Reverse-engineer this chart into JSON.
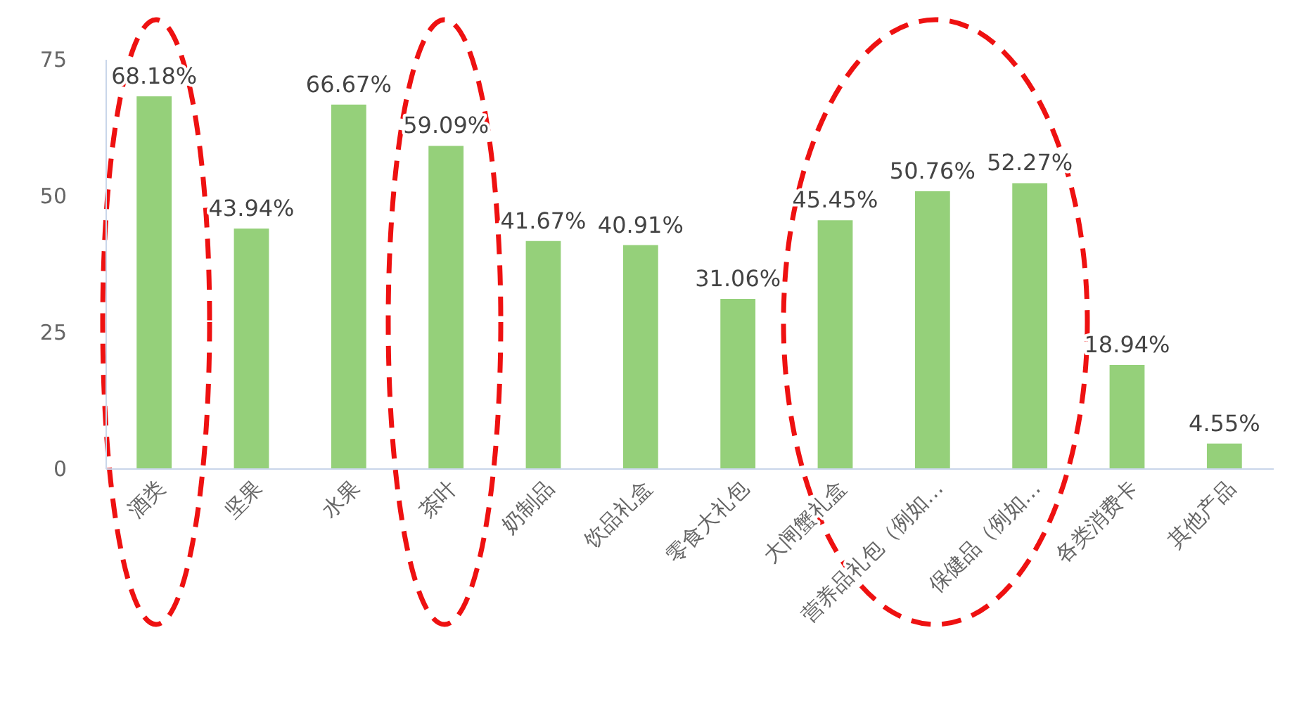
{
  "chart_data": {
    "type": "bar",
    "categories": [
      "酒类",
      "坚果",
      "水果",
      "茶叶",
      "奶制品",
      "饮品礼盒",
      "零食大礼包",
      "大闸蟹礼盒",
      "营养品礼包（例如…",
      "保健品（例如…",
      "各类消费卡",
      "其他产品"
    ],
    "values": [
      68.18,
      43.94,
      66.67,
      59.09,
      41.67,
      40.91,
      31.06,
      45.45,
      50.76,
      52.27,
      18.94,
      4.55
    ],
    "value_labels": [
      "68.18%",
      "43.94%",
      "66.67%",
      "59.09%",
      "41.67%",
      "40.91%",
      "31.06%",
      "45.45%",
      "50.76%",
      "52.27%",
      "18.94%",
      "4.55%"
    ],
    "color": "#95d07a",
    "ylim": [
      0,
      75
    ],
    "yticks": [
      0,
      25,
      50,
      75
    ],
    "grid": false
  }
}
